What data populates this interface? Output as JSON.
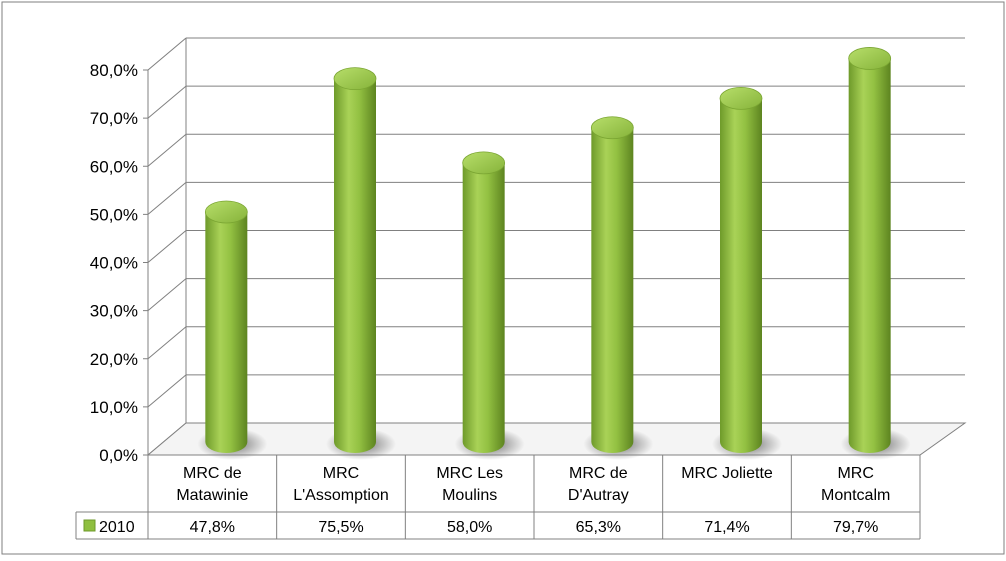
{
  "chart_data": {
    "type": "bar",
    "title": "",
    "xlabel": "",
    "ylabel": "",
    "categories": [
      [
        "MRC de",
        "Matawinie"
      ],
      [
        "MRC",
        "L'Assomption"
      ],
      [
        "MRC Les",
        "Moulins"
      ],
      [
        "MRC de",
        "D'Autray"
      ],
      [
        "MRC Joliette"
      ],
      [
        "MRC",
        "Montcalm"
      ]
    ],
    "series": [
      {
        "name": "2010",
        "values": [
          47.8,
          75.5,
          58.0,
          65.3,
          71.4,
          79.7
        ],
        "labels": [
          "47,8%",
          "75,5%",
          "58,0%",
          "65,3%",
          "71,4%",
          "79,7%"
        ],
        "color": "#8fbf3f"
      }
    ],
    "ylim": [
      0,
      80
    ],
    "yticks": [
      "0,0%",
      "10,0%",
      "20,0%",
      "30,0%",
      "40,0%",
      "50,0%",
      "60,0%",
      "70,0%",
      "80,0%"
    ],
    "grid": true,
    "legend": "data-table",
    "style": "3d-cylinder"
  }
}
